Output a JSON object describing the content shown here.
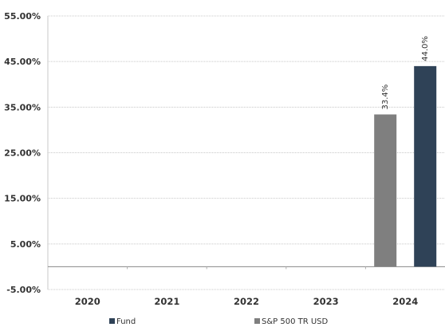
{
  "chart_data": {
    "type": "bar",
    "categories": [
      "2020",
      "2021",
      "2022",
      "2023",
      "2024"
    ],
    "series": [
      {
        "name": "S&P 500 TR USD",
        "color": "#7f7f7f",
        "values": [
          null,
          null,
          null,
          null,
          33.4
        ],
        "labels": [
          "",
          "",
          "",
          "",
          "33.4%"
        ]
      },
      {
        "name": "Fund",
        "color": "#2f4257",
        "values": [
          null,
          null,
          null,
          null,
          44.0
        ],
        "labels": [
          "",
          "",
          "",
          "",
          "44.0%"
        ]
      }
    ],
    "yticks": [
      "55.00%",
      "45.00%",
      "35.00%",
      "25.00%",
      "15.00%",
      "5.00%",
      "-5.00%"
    ],
    "ytick_values": [
      55,
      45,
      35,
      25,
      15,
      5,
      -5
    ],
    "ylim": [
      -5,
      55
    ],
    "grid": true,
    "legend_position": "bottom",
    "title": "",
    "xlabel": "",
    "ylabel": ""
  },
  "legend": [
    {
      "label": "Fund",
      "color": "#2f4257"
    },
    {
      "label": "S&P 500 TR USD",
      "color": "#7f7f7f"
    }
  ]
}
